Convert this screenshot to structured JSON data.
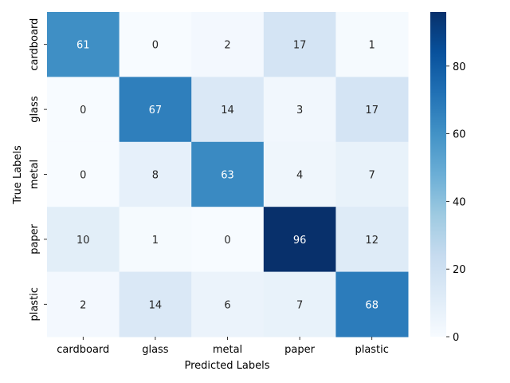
{
  "chart_data": {
    "type": "heatmap",
    "title": "",
    "xlabel": "Predicted Labels",
    "ylabel": "True Labels",
    "x_categories": [
      "cardboard",
      "glass",
      "metal",
      "paper",
      "plastic"
    ],
    "y_categories": [
      "cardboard",
      "glass",
      "metal",
      "paper",
      "plastic"
    ],
    "values": [
      [
        61,
        0,
        2,
        17,
        1
      ],
      [
        0,
        67,
        14,
        3,
        17
      ],
      [
        0,
        8,
        63,
        4,
        7
      ],
      [
        10,
        1,
        0,
        96,
        12
      ],
      [
        2,
        14,
        6,
        7,
        68
      ]
    ],
    "colormap": "Blues",
    "vmin": 0,
    "vmax": 96,
    "colorbar": {
      "ticks": [
        0,
        20,
        40,
        60,
        80
      ]
    },
    "grid": false,
    "legend": "colorbar-right"
  }
}
